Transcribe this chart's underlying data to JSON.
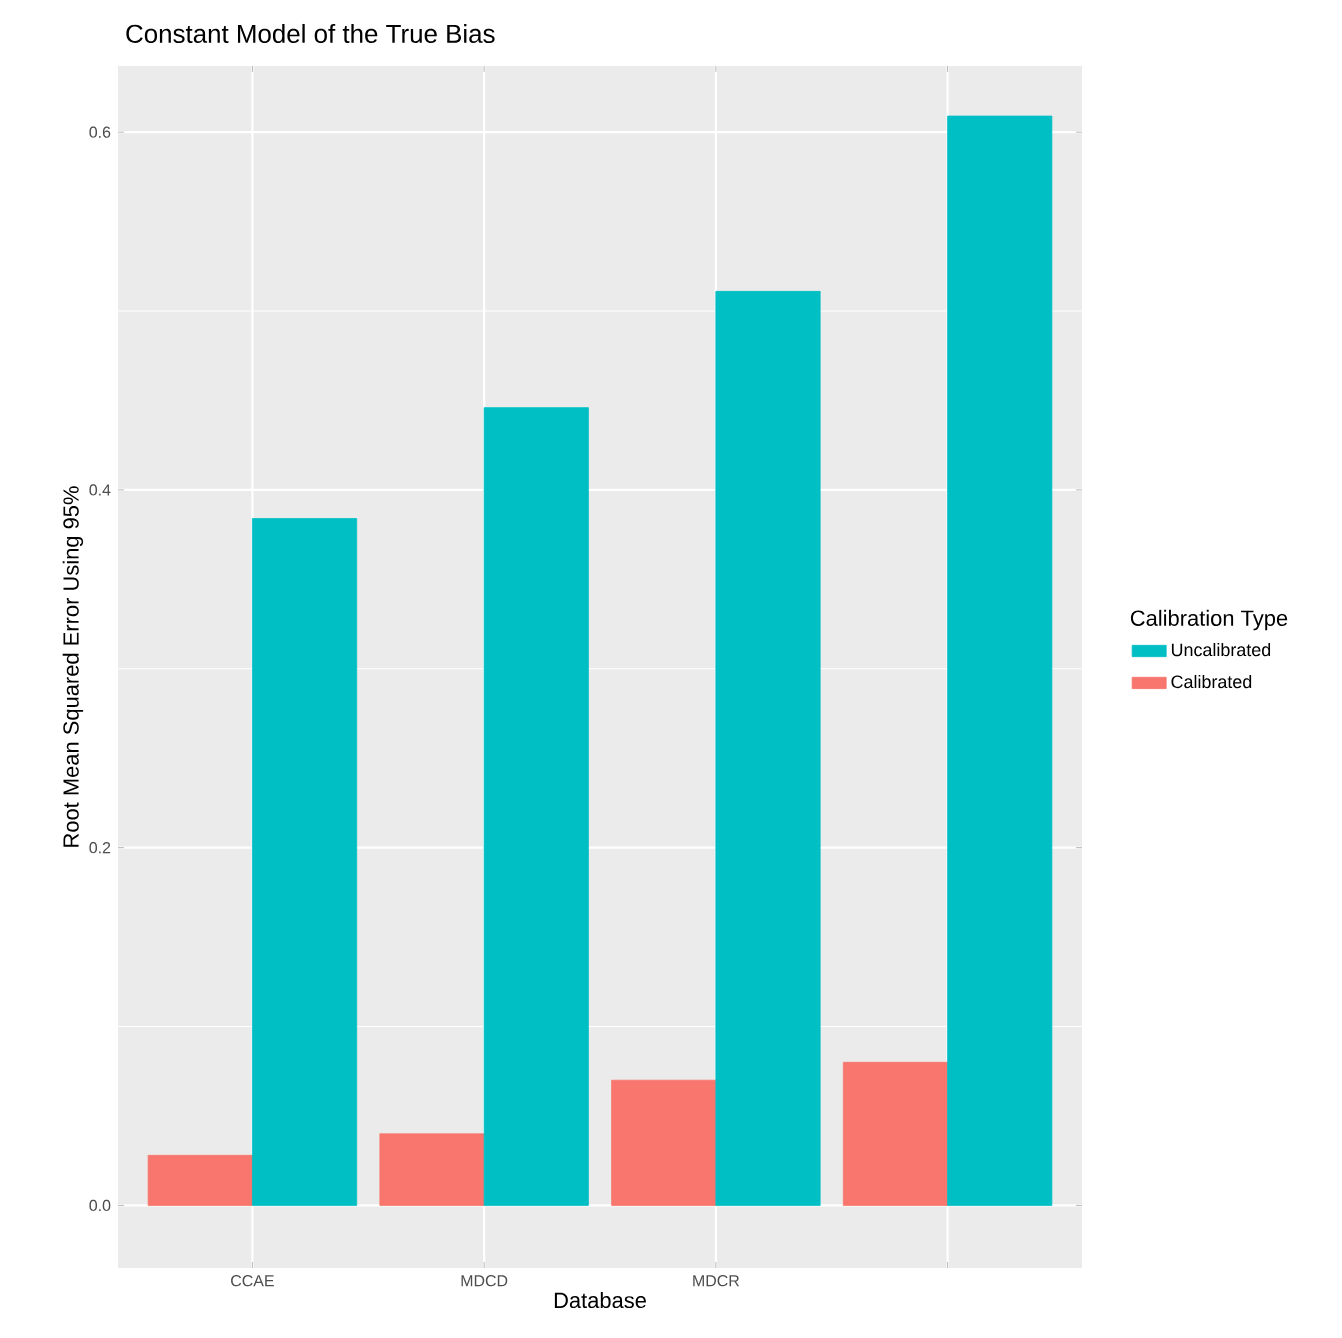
{
  "chart_data": {
    "type": "bar",
    "title": "Constant Model of the True Bias",
    "xlabel": "Database",
    "ylabel": "Root Mean Squared Error Using 95%",
    "legend_title": "Calibration Type",
    "categories": [
      "CCAE",
      "MDCD",
      "MDCR",
      null
    ],
    "series": [
      {
        "name": "Uncalibrated",
        "color": "#00bfc4",
        "values": [
          0.384,
          0.446,
          0.511,
          0.609
        ]
      },
      {
        "name": "Calibrated",
        "color": "#f8766d",
        "values": [
          0.028,
          0.04,
          0.07,
          0.08
        ]
      }
    ],
    "ylim": [
      -0.035,
      0.637
    ],
    "yticks": [
      {
        "value": 0,
        "label": "0.0"
      },
      {
        "value": 0.2,
        "label": "0.2"
      },
      {
        "value": 0.4,
        "label": "0.4"
      },
      {
        "value": 0.6,
        "label": "0.6"
      }
    ],
    "grid": true,
    "legend": "right"
  }
}
